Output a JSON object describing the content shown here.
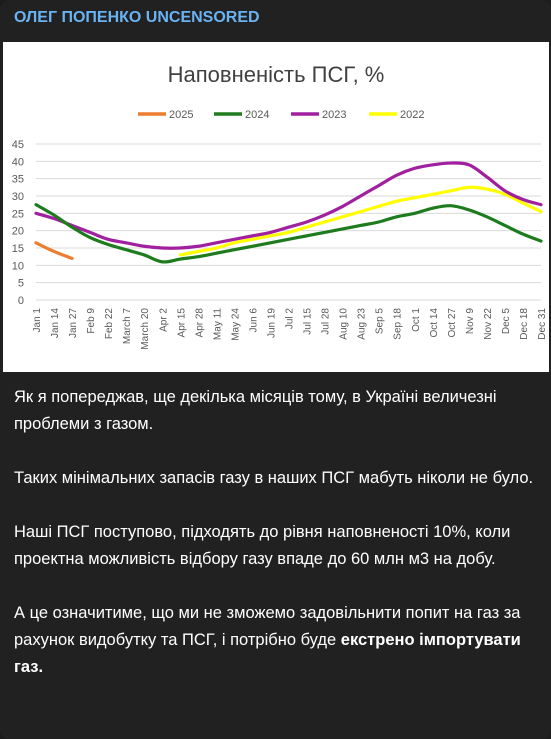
{
  "post": {
    "channel_name": "ОЛЕГ ПОПЕНКО UNCENSORED",
    "p1": "Як я попереджав, ще декілька місяців тому, в Україні величезні проблеми з газом.",
    "p2": "Таких мінімальних запасів газу в наших ПСГ мабуть ніколи не було.",
    "p3": "Наші ПСГ поступово, підходять до рівня наповненості 10%, коли проектна можливість відбору газу впаде до 60 млн м3 на добу.",
    "p4a": "А це означитиме, що ми не зможемо задовільнити попит на газ за рахунок видобутку та ПСГ, і потрібно буде ",
    "p4b": "екстрено імпортувати газ."
  },
  "colors": {
    "background": "#212121",
    "channel": "#6ab3f3",
    "s2025": "#ed7d31",
    "s2024": "#1e7b1e",
    "s2023": "#a020a0",
    "s2022": "#ffff00"
  },
  "chart_data": {
    "type": "line",
    "title": "Наповненість ПСГ, %",
    "xlabel": "",
    "ylabel": "",
    "ylim": [
      0,
      45
    ],
    "yticks": [
      0,
      5,
      10,
      15,
      20,
      25,
      30,
      35,
      40,
      45
    ],
    "grid": true,
    "legend": "top",
    "x_ticks": [
      "Jan 1",
      "Jan 14",
      "Jan 27",
      "Feb 9",
      "Feb 22",
      "March 7",
      "March 20",
      "Apr 2",
      "Apr 15",
      "Apr 28",
      "May 11",
      "May 24",
      "Jun 6",
      "Jun 19",
      "Jul 2",
      "Jul 15",
      "Jul 28",
      "Aug 10",
      "Aug 23",
      "Sep 5",
      "Sep 18",
      "Oct 1",
      "Oct 14",
      "Oct 27",
      "Nov 9",
      "Nov 22",
      "Dec 5",
      "Dec 18",
      "Dec 31"
    ],
    "series": [
      {
        "name": "2025",
        "color": "#ed7d31",
        "x": [
          0,
          1,
          2
        ],
        "values": [
          16.5,
          14,
          12
        ]
      },
      {
        "name": "2024",
        "color": "#1e7b1e",
        "x": [
          0,
          1,
          2,
          3,
          4,
          5,
          6,
          7,
          8,
          9,
          10,
          11,
          12,
          13,
          14,
          15,
          16,
          17,
          18,
          19,
          20,
          21,
          22,
          23,
          24,
          25,
          26,
          27,
          28
        ],
        "values": [
          27.5,
          24.5,
          21,
          18,
          16,
          14.5,
          13,
          11,
          11.8,
          12.5,
          13.5,
          14.5,
          15.5,
          16.5,
          17.5,
          18.5,
          19.5,
          20.5,
          21.5,
          22.5,
          24,
          25,
          26.5,
          27.2,
          26,
          24,
          21.5,
          19,
          17
        ]
      },
      {
        "name": "2023",
        "color": "#a020a0",
        "x": [
          0,
          1,
          2,
          3,
          4,
          5,
          6,
          7,
          8,
          9,
          10,
          11,
          12,
          13,
          14,
          15,
          16,
          17,
          18,
          19,
          20,
          21,
          22,
          23,
          24,
          25,
          26,
          27,
          28
        ],
        "values": [
          25,
          23.5,
          21.5,
          19.5,
          17.5,
          16.5,
          15.5,
          15,
          15,
          15.5,
          16.5,
          17.5,
          18.5,
          19.5,
          21,
          22.5,
          24.5,
          27,
          30,
          33,
          36,
          38,
          39,
          39.5,
          39,
          35.5,
          31.5,
          29,
          27.5
        ]
      },
      {
        "name": "2022",
        "color": "#ffff00",
        "x": [
          8,
          9,
          10,
          11,
          12,
          13,
          14,
          15,
          16,
          17,
          18,
          19,
          20,
          21,
          22,
          23,
          24,
          25,
          26,
          27,
          28
        ],
        "values": [
          13,
          14,
          15,
          16.5,
          17.5,
          18.5,
          19.5,
          21,
          22.5,
          24,
          25.5,
          27,
          28.5,
          29.5,
          30.5,
          31.5,
          32.5,
          32,
          30.5,
          28,
          25.5
        ]
      }
    ]
  }
}
